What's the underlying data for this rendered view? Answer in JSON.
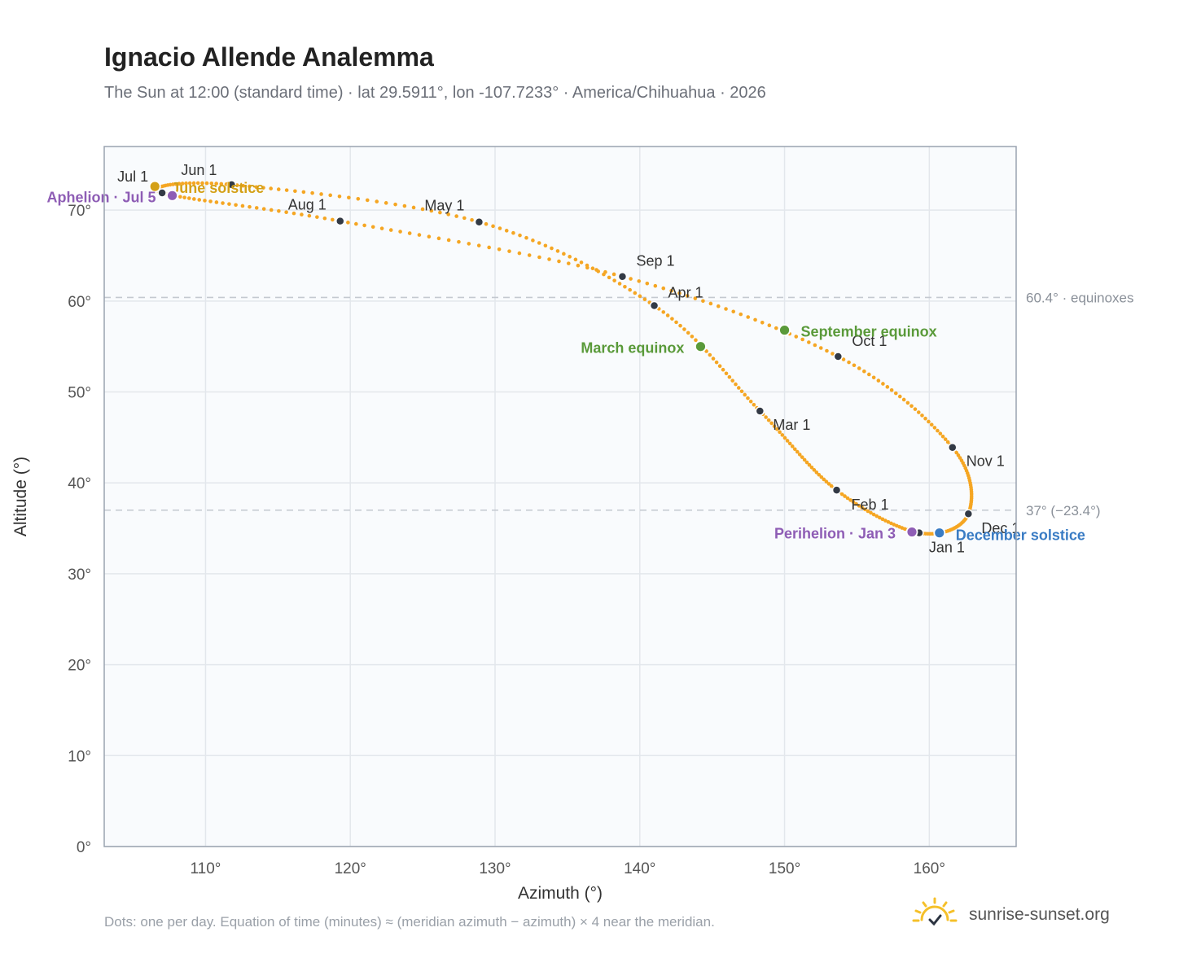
{
  "title": "Ignacio Allende Analemma",
  "subtitle": "The Sun at 12:00 (standard time) · lat 29.5911°, lon -107.7233° · America/Chihuahua · 2026",
  "footnote": "Dots: one per day. Equation of time (minutes) ≈ (meridian azimuth − azimuth) × 4 near the meridian.",
  "brand": {
    "text": "sunrise-sunset.org",
    "icon": "sun-logo-icon"
  },
  "chart_data": {
    "type": "scatter",
    "xlabel": "Azimuth (°)",
    "ylabel": "Altitude (°)",
    "xlim": [
      103,
      166
    ],
    "ylim": [
      0,
      77
    ],
    "x_ticks": [
      110,
      120,
      130,
      140,
      150,
      160
    ],
    "x_tick_labels": [
      "110°",
      "120°",
      "130°",
      "140°",
      "150°",
      "160°"
    ],
    "y_ticks": [
      0,
      10,
      20,
      30,
      40,
      50,
      60,
      70
    ],
    "y_tick_labels": [
      "0°",
      "10°",
      "20°",
      "30°",
      "40°",
      "50°",
      "60°",
      "70°"
    ],
    "grid": true,
    "colors": {
      "path": "#f5a623",
      "month_marker": "#333a45",
      "equinox": "#5a9a3a",
      "june_solstice": "#d4a017",
      "december_solstice": "#3a7cc4",
      "apsis": "#8e5db5",
      "reference_line": "#c4c9d0"
    },
    "reference_lines": [
      {
        "y": 60.4,
        "label": "60.4° · equinoxes"
      },
      {
        "y": 37.0,
        "label": "37° (−23.4°)"
      }
    ],
    "month_markers": [
      {
        "label": "Jan 1",
        "az": 159.3,
        "alt": 34.5
      },
      {
        "label": "Feb 1",
        "az": 153.6,
        "alt": 39.2
      },
      {
        "label": "Mar 1",
        "az": 148.3,
        "alt": 47.9
      },
      {
        "label": "Apr 1",
        "az": 141.0,
        "alt": 59.5
      },
      {
        "label": "May 1",
        "az": 128.9,
        "alt": 68.7
      },
      {
        "label": "Jun 1",
        "az": 111.8,
        "alt": 72.8
      },
      {
        "label": "Jul 1",
        "az": 107.0,
        "alt": 71.9
      },
      {
        "label": "Aug 1",
        "az": 119.3,
        "alt": 68.8
      },
      {
        "label": "Sep 1",
        "az": 138.8,
        "alt": 62.7
      },
      {
        "label": "Oct 1",
        "az": 153.7,
        "alt": 53.9
      },
      {
        "label": "Nov 1",
        "az": 161.6,
        "alt": 43.9
      },
      {
        "label": "Dec 1",
        "az": 162.7,
        "alt": 36.6
      }
    ],
    "events": [
      {
        "label": "March equinox",
        "az": 144.2,
        "alt": 55.0,
        "kind": "equinox"
      },
      {
        "label": "September equinox",
        "az": 150.0,
        "alt": 56.8,
        "kind": "equinox"
      },
      {
        "label": "June solstice",
        "az": 106.5,
        "alt": 72.6,
        "kind": "june_solstice"
      },
      {
        "label": "December solstice",
        "az": 160.7,
        "alt": 34.5,
        "kind": "december_solstice"
      },
      {
        "label": "Aphelion · Jul 5",
        "az": 107.7,
        "alt": 71.6,
        "kind": "apsis"
      },
      {
        "label": "Perihelion · Jan 3",
        "az": 158.8,
        "alt": 34.6,
        "kind": "apsis"
      }
    ]
  }
}
